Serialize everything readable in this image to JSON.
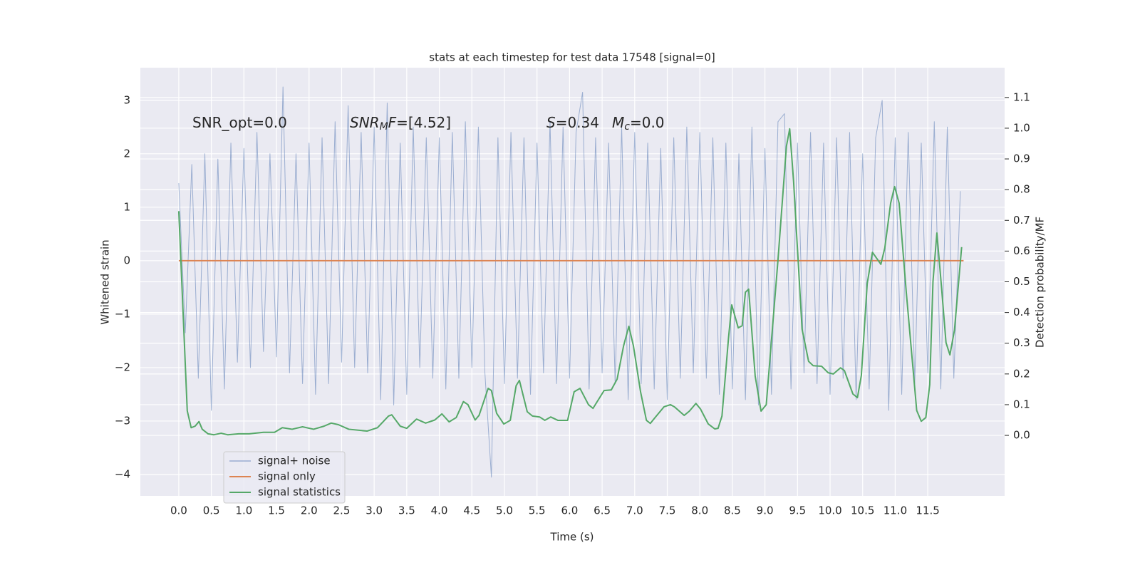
{
  "chart_data": {
    "type": "line",
    "title": "stats at each timestep for test data 17548 [signal=0]",
    "xlabel": "Time (s)",
    "ylabel": "Whitened strain",
    "y2label": "Detection probability/MF",
    "xlim": [
      -0.59,
      12.68
    ],
    "ylim": [
      -4.4,
      3.61
    ],
    "y2lim": [
      -0.197,
      1.197
    ],
    "xticks": [
      {
        "value": 0,
        "label": "0.0"
      },
      0.5,
      {
        "value": 1,
        "label": "1.0"
      },
      1.5,
      {
        "value": 2,
        "label": "2.0"
      },
      2.5,
      {
        "value": 3,
        "label": "3.0"
      },
      3.5,
      {
        "value": 4,
        "label": "4.0"
      },
      4.5,
      {
        "value": 5,
        "label": "5.0"
      },
      5.5,
      {
        "value": 6,
        "label": "6.0"
      },
      6.5,
      {
        "value": 7,
        "label": "7.0"
      },
      7.5,
      {
        "value": 8,
        "label": "8.0"
      },
      8.5,
      {
        "value": 9,
        "label": "9.0"
      },
      9.5,
      {
        "value": 10,
        "label": "10.0"
      },
      10.5,
      {
        "value": 11,
        "label": "11.0"
      },
      11.5
    ],
    "yticks": [
      {
        "value": -4,
        "label": "−4"
      },
      {
        "value": -3,
        "label": "−3"
      },
      {
        "value": -2,
        "label": "−2"
      },
      {
        "value": -1,
        "label": "−1"
      },
      0,
      1,
      2,
      3
    ],
    "y2ticks": [
      {
        "value": 0,
        "label": "0.0"
      },
      0.1,
      0.2,
      0.3,
      0.4,
      0.5,
      0.6,
      0.7,
      0.8,
      0.9,
      {
        "value": 1,
        "label": "1.0"
      },
      1.1
    ],
    "grid": true,
    "legend": "lower left",
    "annotations": [
      [
        {
          "text": "SNR_opt=0.0"
        }
      ],
      [
        {
          "text": "SNR",
          "italic": true
        },
        {
          "text": "M",
          "italic": true,
          "sub": true
        },
        {
          "text": "F",
          "italic": true
        },
        {
          "text": "=[4.52]"
        }
      ],
      [
        {
          "text": "S",
          "italic": true
        },
        {
          "text": "=0.34"
        }
      ],
      [
        {
          "text": "M",
          "italic": true
        },
        {
          "text": "c",
          "italic": true,
          "sub": true
        },
        {
          "text": "=0.0"
        }
      ]
    ],
    "series": [
      {
        "name": "signal+ noise",
        "color": "#4c72b0",
        "opacity": 0.5,
        "x": [
          0.0,
          0.1,
          0.2,
          0.3,
          0.4,
          0.5,
          0.6,
          0.7,
          0.8,
          0.9,
          1.0,
          1.1,
          1.2,
          1.3,
          1.4,
          1.5,
          1.6,
          1.7,
          1.8,
          1.9,
          2.0,
          2.1,
          2.2,
          2.3,
          2.4,
          2.5,
          2.6,
          2.7,
          2.8,
          2.9,
          3.0,
          3.1,
          3.2,
          3.3,
          3.4,
          3.5,
          3.6,
          3.7,
          3.8,
          3.9,
          4.0,
          4.1,
          4.2,
          4.3,
          4.4,
          4.5,
          4.6,
          4.7,
          4.8,
          4.9,
          5.0,
          5.1,
          5.2,
          5.3,
          5.4,
          5.5,
          5.6,
          5.7,
          5.8,
          5.9,
          6.0,
          6.1,
          6.2,
          6.3,
          6.4,
          6.5,
          6.6,
          6.7,
          6.8,
          6.9,
          7.0,
          7.1,
          7.2,
          7.3,
          7.4,
          7.5,
          7.6,
          7.7,
          7.8,
          7.9,
          8.0,
          8.1,
          8.2,
          8.3,
          8.4,
          8.5,
          8.6,
          8.7,
          8.8,
          8.9,
          9.0,
          9.1,
          9.2,
          9.3,
          9.4,
          9.5,
          9.6,
          9.7,
          9.8,
          9.9,
          10.0,
          10.1,
          10.2,
          10.3,
          10.4,
          10.5,
          10.6,
          10.7,
          10.8,
          10.9,
          11.0,
          11.1,
          11.2,
          11.3,
          11.4,
          11.5,
          11.6,
          11.7,
          11.8,
          11.9,
          12.0
        ],
        "values": [
          1.45,
          -1.35,
          1.8,
          -2.2,
          2.0,
          -2.8,
          1.9,
          -2.4,
          2.2,
          -1.9,
          2.1,
          -2.0,
          2.4,
          -1.7,
          2.0,
          -1.8,
          3.25,
          -2.1,
          2.0,
          -2.3,
          2.2,
          -2.5,
          2.3,
          -2.3,
          2.6,
          -1.9,
          2.9,
          -2.0,
          2.4,
          -2.1,
          2.5,
          -2.6,
          2.95,
          -2.7,
          2.2,
          -2.5,
          2.5,
          -2.0,
          2.3,
          -2.2,
          2.3,
          -2.4,
          2.4,
          -2.2,
          2.6,
          -2.0,
          2.5,
          -2.1,
          -4.05,
          2.3,
          -2.3,
          2.4,
          -2.2,
          2.3,
          -2.5,
          2.2,
          -2.1,
          2.6,
          -2.3,
          2.5,
          -2.2,
          2.4,
          3.15,
          -2.4,
          2.3,
          -2.1,
          2.2,
          -2.3,
          2.5,
          -2.6,
          2.4,
          -2.3,
          2.2,
          -2.4,
          2.1,
          -2.6,
          2.3,
          -2.2,
          2.5,
          -2.1,
          2.4,
          -2.2,
          2.3,
          -2.5,
          2.2,
          -2.4,
          2.0,
          -2.6,
          2.5,
          -2.7,
          2.1,
          -2.5,
          2.6,
          2.75,
          -2.4,
          2.2,
          -2.1,
          2.4,
          -2.3,
          2.2,
          -2.5,
          2.3,
          -2.2,
          2.4,
          -2.6,
          2.0,
          -2.4,
          2.3,
          3.0,
          -2.8,
          2.3,
          -2.5,
          2.4,
          -2.3,
          2.2,
          -2.1,
          2.6,
          -2.4,
          2.5,
          -2.2,
          1.3
        ]
      },
      {
        "name": "signal only",
        "color": "#dd8452",
        "x": [
          0.0,
          12.05
        ],
        "values": [
          0,
          0
        ]
      },
      {
        "name": "signal statistics",
        "color": "#55a868",
        "axis": "y2",
        "x": [
          0.0,
          0.13,
          0.19,
          0.25,
          0.31,
          0.36,
          0.45,
          0.54,
          0.65,
          0.75,
          0.92,
          1.08,
          1.3,
          1.47,
          1.59,
          1.74,
          1.9,
          2.07,
          2.23,
          2.34,
          2.45,
          2.61,
          2.89,
          3.05,
          3.22,
          3.27,
          3.4,
          3.5,
          3.65,
          3.79,
          3.93,
          4.04,
          4.15,
          4.26,
          4.37,
          4.44,
          4.55,
          4.61,
          4.75,
          4.8,
          4.88,
          4.99,
          5.09,
          5.18,
          5.23,
          5.35,
          5.43,
          5.54,
          5.62,
          5.71,
          5.82,
          5.97,
          6.07,
          6.16,
          6.29,
          6.36,
          6.53,
          6.64,
          6.73,
          6.83,
          6.91,
          6.98,
          7.09,
          7.18,
          7.24,
          7.32,
          7.45,
          7.55,
          7.61,
          7.76,
          7.84,
          7.94,
          8.01,
          8.13,
          8.23,
          8.28,
          8.34,
          8.39,
          8.44,
          8.49,
          8.59,
          8.65,
          8.7,
          8.75,
          8.85,
          8.94,
          9.02,
          9.2,
          9.33,
          9.38,
          9.44,
          9.57,
          9.67,
          9.74,
          9.87,
          9.97,
          10.05,
          10.16,
          10.22,
          10.35,
          10.42,
          10.48,
          10.57,
          10.65,
          10.78,
          10.84,
          10.93,
          10.99,
          11.06,
          11.17,
          11.33,
          11.4,
          11.47,
          11.53,
          11.58,
          11.64,
          11.71,
          11.78,
          11.84,
          11.91,
          12.02
        ],
        "values": [
          0.73,
          0.08,
          0.025,
          0.03,
          0.045,
          0.02,
          0.005,
          0.002,
          0.007,
          0.002,
          0.005,
          0.005,
          0.01,
          0.01,
          0.025,
          0.02,
          0.028,
          0.02,
          0.03,
          0.04,
          0.035,
          0.02,
          0.014,
          0.025,
          0.063,
          0.067,
          0.03,
          0.023,
          0.053,
          0.04,
          0.05,
          0.07,
          0.044,
          0.058,
          0.11,
          0.1,
          0.05,
          0.065,
          0.153,
          0.146,
          0.072,
          0.037,
          0.049,
          0.162,
          0.179,
          0.077,
          0.063,
          0.06,
          0.049,
          0.06,
          0.049,
          0.049,
          0.142,
          0.153,
          0.1,
          0.088,
          0.146,
          0.148,
          0.183,
          0.292,
          0.355,
          0.292,
          0.142,
          0.049,
          0.039,
          0.06,
          0.093,
          0.1,
          0.093,
          0.065,
          0.079,
          0.104,
          0.086,
          0.037,
          0.021,
          0.023,
          0.063,
          0.188,
          0.316,
          0.425,
          0.35,
          0.357,
          0.466,
          0.476,
          0.193,
          0.079,
          0.1,
          0.571,
          0.942,
          0.998,
          0.826,
          0.346,
          0.241,
          0.227,
          0.225,
          0.204,
          0.2,
          0.22,
          0.211,
          0.135,
          0.123,
          0.195,
          0.494,
          0.596,
          0.557,
          0.61,
          0.756,
          0.81,
          0.756,
          0.466,
          0.081,
          0.046,
          0.058,
          0.165,
          0.501,
          0.659,
          0.485,
          0.302,
          0.262,
          0.343,
          0.613
        ]
      }
    ]
  }
}
